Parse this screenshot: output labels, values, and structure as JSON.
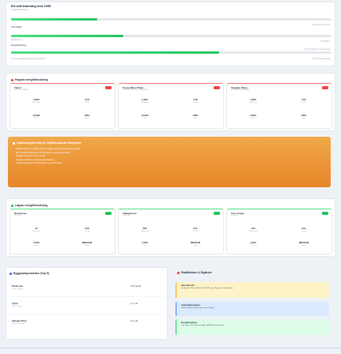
{
  "progress": {
    "title": "EU-mål framsteg mot 2035",
    "subtitle": "energieffektivisering",
    "rows": [
      {
        "label": "CO2-utsläpp",
        "right": "19 kg CO2/m² (mål 5)",
        "fill_percent": 27
      },
      {
        "label": "Energiförbrukning",
        "right": "92 kWh/m²",
        "fill_percent": 35
      },
      {
        "label": "Digitalisering",
        "right": "82 % fastigheter med sensorer",
        "fill_percent": 60
      }
    ],
    "footer_left": "71 % av digitala byggnader uppkopplade",
    "footer_right": "29 % kvar att koppla"
  },
  "highest": {
    "title": "Högsta energiförbrukning",
    "cards": [
      {
        "name": "Tyfuel",
        "sub": "KONTOR 3 ETAGE",
        "v1": "2,800",
        "l1": "kWh/månad",
        "v2": "019",
        "l2": "CO2 kg",
        "v3": "15,900",
        "l3": "Yta m²",
        "v4": "HÖG",
        "l4": "Status"
      },
      {
        "name": "Kong Håkon Plaza",
        "sub": "KONTOR 4 ETAGE, 12 ENHETER",
        "v1": "2,200",
        "l1": "kWh/månad",
        "v2": "018",
        "l2": "CO2 kg",
        "v3": "12,900",
        "l3": "Yta m²",
        "v4": "HÖG",
        "l4": "Status"
      },
      {
        "name": "Stargate Plaza",
        "sub": "KONTOR, RESTAURANG",
        "v1": "1,800",
        "l1": "kWh/månad",
        "v2": "020",
        "l2": "CO2 kg",
        "v3": "8,000",
        "l3": "Yta m²",
        "v4": "HÖG",
        "l4": "Status"
      }
    ]
  },
  "tips": {
    "title": "Optimeringsförslag för högförbrukande fastigheter",
    "items": [
      "Installera smarta termostater och schemalägg uppvärmning (besparing ca 12%)",
      "Byt ut gamla LED-armaturer och komplettera med närvarosensorer",
      "Förbättra isolering av fönster och tak",
      "Optimera ventilation med behovsstyrd reglering",
      "Installera solpaneler och batterilager för egen förbrukning"
    ]
  },
  "lowest": {
    "title": "Lägsta energiförbrukning",
    "cards": [
      {
        "name": "Nordtornet",
        "sub": "KONTOR",
        "v1": "42",
        "l1": "kWh/månad",
        "v2": "009",
        "l2": "CO2 kg",
        "v3": "5,000",
        "l3": "Yta m²",
        "v4": "MEDIUM",
        "l4": "Status"
      },
      {
        "name": "Vikingfurnet",
        "sub": "KONTOR",
        "v1": "380",
        "l1": "kWh/månad",
        "v2": "015",
        "l2": "CO2 kg",
        "v3": "2,500",
        "l3": "Yta m²",
        "v4": "MEDIUM",
        "l4": "Status"
      },
      {
        "name": "Oslo Torget",
        "sub": "KONTOR",
        "v1": "420",
        "l1": "kWh/månad",
        "v2": "014",
        "l2": "CO2 kg",
        "v3": "3,000",
        "l3": "Yta m²",
        "v4": "MEDIUM",
        "l4": "Status"
      }
    ]
  },
  "performance": {
    "title": "Byggnadsprestation (Top 5)",
    "rows": [
      {
        "name": "Nordtornet",
        "sub": "kontor, 4 etage",
        "vals": "23 H2 kg 99"
      },
      {
        "name": "Tyfuel",
        "sub": "kontor, 3 etage",
        "vals": "27 ▲ 95"
      },
      {
        "name": "Stargate Plaza",
        "sub": "kontor, restaurang",
        "vals": "29 ▲ 96"
      }
    ]
  },
  "alerts": {
    "title": "Realtidslarm & Åtgärder",
    "items": [
      {
        "head": "Hög CO2-nivå",
        "text": "Kong Håkon Plaza, Mötesrum 2B: 1150 ppm · Åtgärd: öka ventilationen",
        "bg": "#fef3c7",
        "border": "#f59e0b"
      },
      {
        "head": "Underhållsavvikelse",
        "text": "Tyfuel: Luftfilter behöver bytas inom 10 dagar",
        "bg": "#dbeafe",
        "border": "#3b82f6"
      },
      {
        "head": "Energibesparing",
        "text": "Oslo Torget: 14% lägre än budget · AI/BEMS-styrning aktiv",
        "bg": "#dcfce7",
        "border": "#22c55e"
      }
    ]
  },
  "colors": {
    "accent_green": "#22c55e",
    "alert_red": "#ef4444",
    "tips_orange": "#f59e0b"
  }
}
